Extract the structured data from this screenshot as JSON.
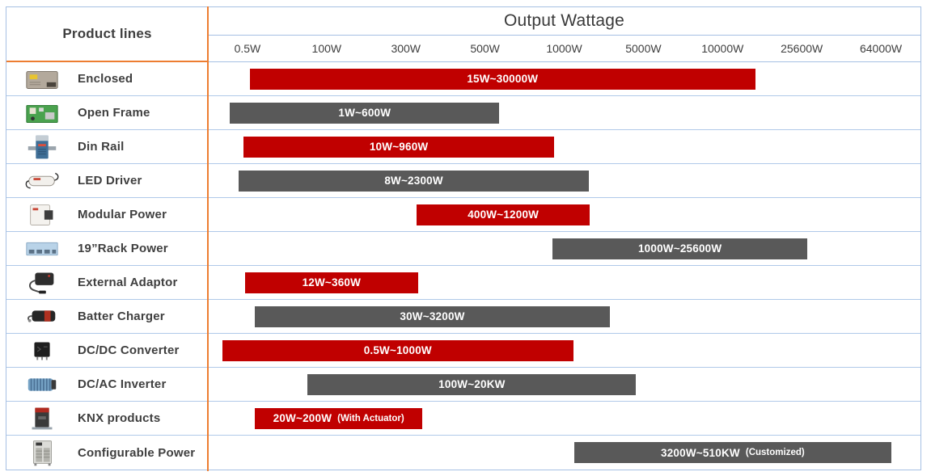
{
  "header": {
    "product_lines_label": "Product lines",
    "output_wattage_title": "Output Wattage"
  },
  "colors": {
    "red": "#C00000",
    "gray": "#595959",
    "border_blue": "#A6C0E3",
    "row_line_blue": "#B0C9E9",
    "divider_orange": "#ED7D31",
    "text_dark": "#3F3F3F",
    "bar_text": "#FFFFFF"
  },
  "chart_data": {
    "type": "bar",
    "orientation": "horizontal-range",
    "title": "Output Wattage",
    "x_axis_ticks": [
      "0.5W",
      "100W",
      "300W",
      "500W",
      "1000W",
      "5000W",
      "10000W",
      "25600W",
      "64000W"
    ],
    "x_axis_scale": "non-linear (category positions, evenly spaced ticks)",
    "grid": false,
    "legend": "none",
    "rows": [
      {
        "product": "Enclosed",
        "icon": "enclosed-psu-icon",
        "color": "red",
        "label": "15W~30000W",
        "note": "",
        "range_w": [
          15,
          30000
        ],
        "bar_left_pct": 5.9,
        "bar_width_pct": 70.9
      },
      {
        "product": "Open Frame",
        "icon": "open-frame-psu-icon",
        "color": "gray",
        "label": "1W~600W",
        "note": "",
        "range_w": [
          1,
          600
        ],
        "bar_left_pct": 3.1,
        "bar_width_pct": 37.8
      },
      {
        "product": "Din Rail",
        "icon": "din-rail-psu-icon",
        "color": "red",
        "label": "10W~960W",
        "note": "",
        "range_w": [
          10,
          960
        ],
        "bar_left_pct": 5.0,
        "bar_width_pct": 43.6
      },
      {
        "product": "LED Driver",
        "icon": "led-driver-icon",
        "color": "gray",
        "label": "8W~2300W",
        "note": "",
        "range_w": [
          8,
          2300
        ],
        "bar_left_pct": 4.3,
        "bar_width_pct": 49.2
      },
      {
        "product": "Modular Power",
        "icon": "modular-power-icon",
        "color": "red",
        "label": "400W~1200W",
        "note": "",
        "range_w": [
          400,
          1200
        ],
        "bar_left_pct": 29.3,
        "bar_width_pct": 24.3
      },
      {
        "product": "19”Rack Power",
        "icon": "rack-power-icon",
        "color": "gray",
        "label": "1000W~25600W",
        "note": "",
        "range_w": [
          1000,
          25600
        ],
        "bar_left_pct": 48.4,
        "bar_width_pct": 35.7
      },
      {
        "product": "External Adaptor",
        "icon": "external-adaptor-icon",
        "color": "red",
        "label": "12W~360W",
        "note": "",
        "range_w": [
          12,
          360
        ],
        "bar_left_pct": 5.2,
        "bar_width_pct": 24.3
      },
      {
        "product": "Batter Charger",
        "icon": "battery-charger-icon",
        "color": "gray",
        "label": "30W~3200W",
        "note": "",
        "range_w": [
          30,
          3200
        ],
        "bar_left_pct": 6.6,
        "bar_width_pct": 49.8
      },
      {
        "product": "DC/DC Converter",
        "icon": "dcdc-converter-icon",
        "color": "red",
        "label": "0.5W~1000W",
        "note": "",
        "range_w": [
          0.5,
          1000
        ],
        "bar_left_pct": 2.0,
        "bar_width_pct": 49.3
      },
      {
        "product": "DC/AC Inverter",
        "icon": "dcac-inverter-icon",
        "color": "gray",
        "label": "100W~20KW",
        "note": "",
        "range_w": [
          100,
          20000
        ],
        "bar_left_pct": 14.0,
        "bar_width_pct": 46.1
      },
      {
        "product": "KNX products",
        "icon": "knx-product-icon",
        "color": "red",
        "label": "20W~200W",
        "note": "(With Actuator)",
        "range_w": [
          20,
          200
        ],
        "bar_left_pct": 6.6,
        "bar_width_pct": 23.5
      },
      {
        "product": "Configurable Power",
        "icon": "configurable-power-icon",
        "color": "gray",
        "label": "3200W~510KW",
        "note": "(Customized)",
        "range_w": [
          3200,
          510000
        ],
        "bar_left_pct": 51.4,
        "bar_width_pct": 44.5
      }
    ]
  }
}
